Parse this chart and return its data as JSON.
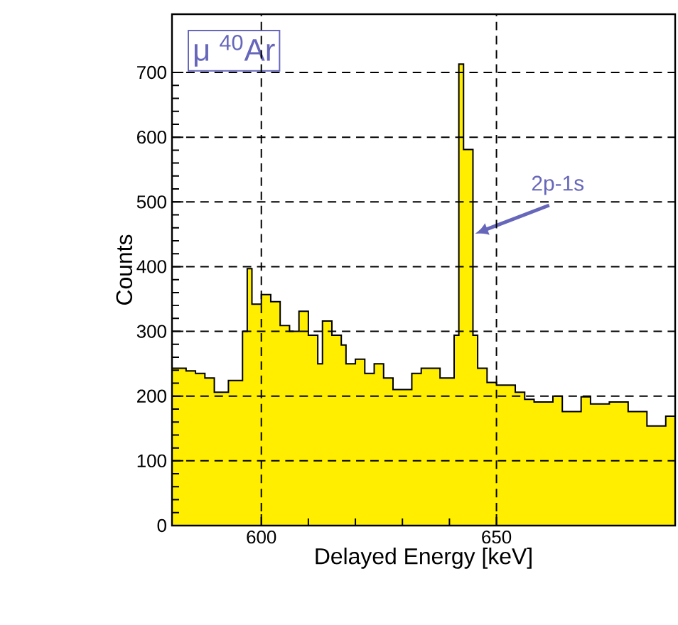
{
  "chart_data": {
    "type": "histogram",
    "title": "μ $^{40}$Ar",
    "xlabel": "Delayed Energy [keV]",
    "ylabel": "Counts",
    "bins": [
      581,
      584,
      586,
      588,
      590,
      593,
      596,
      597,
      598,
      600,
      602,
      604,
      606,
      608,
      610,
      612,
      613,
      615,
      617,
      618,
      620,
      622,
      624,
      626,
      628,
      632,
      634,
      638,
      641,
      642,
      643,
      645,
      646,
      648,
      650,
      654,
      656,
      658,
      662,
      664,
      668,
      670,
      674,
      678,
      682,
      686,
      688
    ],
    "values": [
      243,
      239,
      235,
      228,
      206,
      224,
      300,
      397,
      342,
      357,
      346,
      309,
      300,
      331,
      294,
      250,
      316,
      294,
      279,
      250,
      257,
      235,
      250,
      228,
      210,
      235,
      243,
      228,
      294,
      713,
      581,
      294,
      243,
      221,
      217,
      206,
      195,
      191,
      200,
      176,
      199,
      188,
      191,
      176,
      154,
      169
    ],
    "color": "#ffee00",
    "xlim": [
      581,
      688
    ],
    "ylim": [
      0,
      790
    ],
    "xticks": [
      600,
      650
    ],
    "yticks": [
      0,
      100,
      200,
      300,
      400,
      500,
      600,
      700
    ],
    "grid": true,
    "annotations": [
      {
        "text": "2p-1s",
        "x": 645.5,
        "y": 451
      }
    ]
  }
}
